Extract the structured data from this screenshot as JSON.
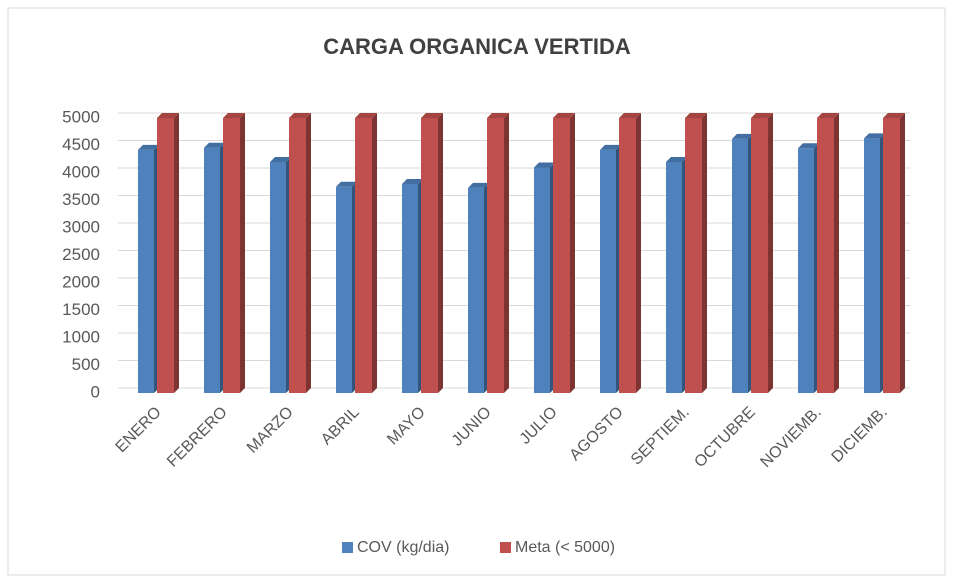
{
  "chart_data": {
    "type": "bar",
    "title": "CARGA ORGANICA VERTIDA",
    "categories": [
      "ENERO",
      "FEBRERO",
      "MARZO",
      "ABRIL",
      "MAYO",
      "JUNIO",
      "JULIO",
      "AGOSTO",
      "SEPTIEM.",
      "OCTUBRE",
      "NOVIEMB.",
      "DICIEMB."
    ],
    "series": [
      {
        "name": "COV (kg/dia)",
        "color": "#4f81bd",
        "values": [
          4420,
          4460,
          4200,
          3750,
          3800,
          3730,
          4100,
          4420,
          4200,
          4620,
          4450,
          4630
        ]
      },
      {
        "name": "Meta (< 5000)",
        "color": "#c0504d",
        "values": [
          5000,
          5000,
          5000,
          5000,
          5000,
          5000,
          5000,
          5000,
          5000,
          5000,
          5000,
          5000
        ]
      }
    ],
    "ylim": [
      0,
      5000
    ],
    "yticks": [
      0,
      500,
      1000,
      1500,
      2000,
      2500,
      3000,
      3500,
      4000,
      4500,
      5000
    ],
    "grid": true,
    "legend": "bottom"
  }
}
